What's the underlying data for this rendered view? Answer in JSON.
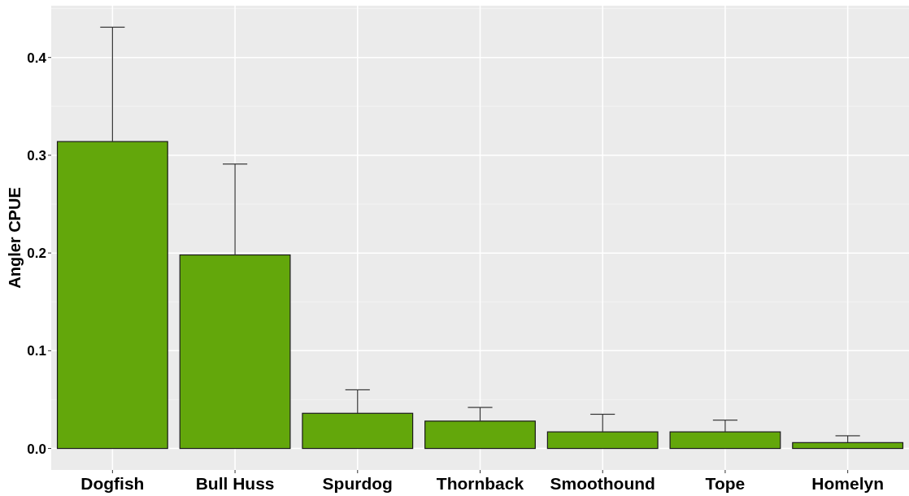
{
  "chart_data": {
    "type": "bar",
    "ylabel": "Angler CPUE",
    "categories": [
      "Dogfish",
      "Bull Huss",
      "Spurdog",
      "Thornback",
      "Smoothound",
      "Tope",
      "Homelyn"
    ],
    "values": [
      0.314,
      0.198,
      0.036,
      0.028,
      0.017,
      0.017,
      0.006
    ],
    "errors": [
      [
        0.314,
        0.431
      ],
      [
        0.198,
        0.291
      ],
      [
        0.036,
        0.06
      ],
      [
        0.028,
        0.042
      ],
      [
        0.017,
        0.035
      ],
      [
        0.017,
        0.029
      ],
      [
        0.006,
        0.013
      ]
    ],
    "color": "#63a70b",
    "ylim": [
      -0.022,
      0.453
    ],
    "yticks": [
      {
        "value": 0,
        "label": "0.0"
      },
      0.1,
      0.2,
      0.3,
      0.4
    ],
    "grid": true
  }
}
